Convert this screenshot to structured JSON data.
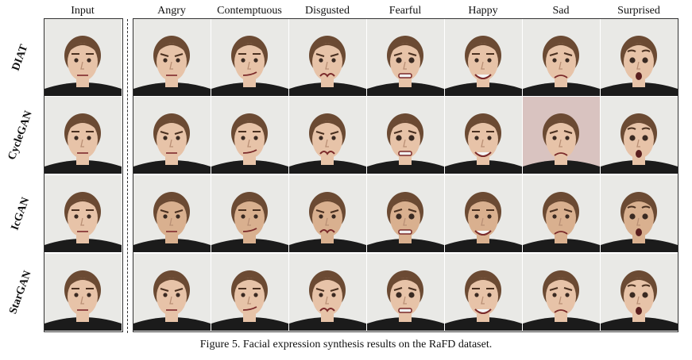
{
  "columns": [
    "Input",
    "Angry",
    "Contemptuous",
    "Disgusted",
    "Fearful",
    "Happy",
    "Sad",
    "Surprised"
  ],
  "rows": [
    "DIAT",
    "CycleGAN",
    "IcGAN",
    "StarGAN"
  ],
  "caption": "Figure 5. Facial expression synthesis results on the RaFD dataset.",
  "colors": {
    "background": "#e9e9e6",
    "hair": "#6b4a33",
    "skin": "#e7c3a8",
    "shirt": "#1b1b1b",
    "frame": "#333333"
  }
}
